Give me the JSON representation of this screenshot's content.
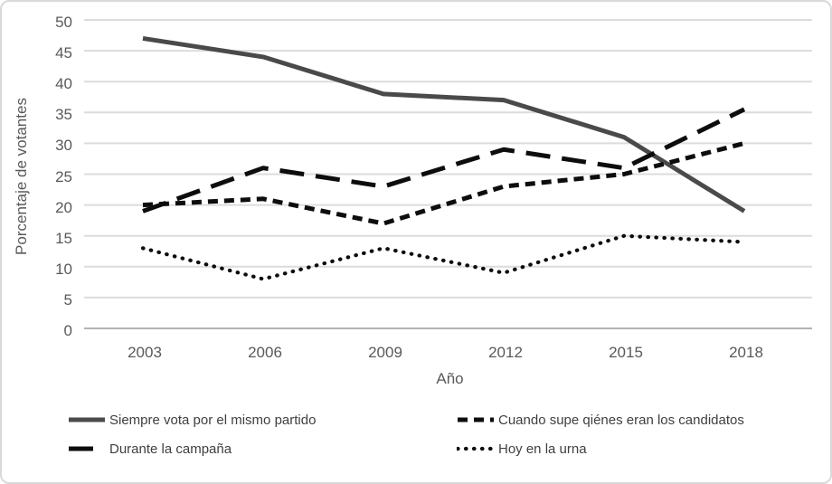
{
  "chart_data": {
    "type": "line",
    "title": "",
    "xlabel": "Año",
    "ylabel": "Porcentaje de votantes",
    "categories": [
      "2003",
      "2006",
      "2009",
      "2012",
      "2015",
      "2018"
    ],
    "ylim": [
      0,
      50
    ],
    "yticks": [
      0,
      5,
      10,
      15,
      20,
      25,
      30,
      35,
      40,
      45,
      50
    ],
    "grid": "horizontal",
    "legend_position": "bottom",
    "series": [
      {
        "name": "Siempre vota por el mismo partido",
        "values": [
          47,
          44,
          38,
          37,
          31,
          19
        ],
        "line_style": "solid",
        "color": "#4a4a4a"
      },
      {
        "name": "Cuando supe qiénes eran los candidatos",
        "values": [
          20,
          21,
          17,
          23,
          25,
          30
        ],
        "line_style": "dashed",
        "color": "#0d0d0d"
      },
      {
        "name": "Durante la campaña",
        "values": [
          19,
          26,
          23,
          29,
          26,
          35.5
        ],
        "line_style": "long-dash",
        "color": "#0d0d0d"
      },
      {
        "name": "Hoy en la urna",
        "values": [
          13,
          8,
          13,
          9,
          15,
          14
        ],
        "line_style": "dotted",
        "color": "#0d0d0d"
      }
    ],
    "legend_order": [
      0,
      1,
      2,
      3
    ]
  },
  "colors": {
    "background": "#ffffff",
    "chart_border": "#d9d9d9",
    "gridline": "#dcdcdc",
    "axis_line": "#b3b3b3",
    "axis_text": "#595959",
    "legend_text": "#3f3f3f"
  }
}
